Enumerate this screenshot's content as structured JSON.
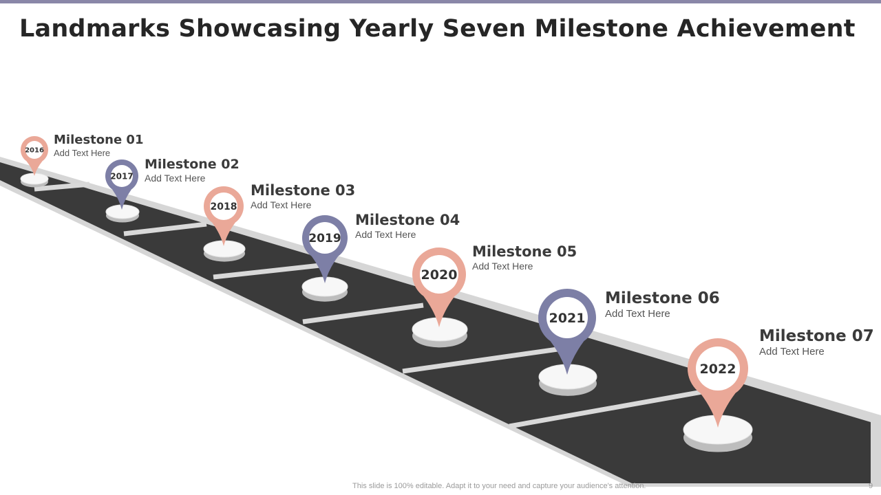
{
  "title": "Landmarks Showcasing Yearly Seven Milestone Achievement",
  "colors": {
    "pin_salmon": "#eaa898",
    "pin_purple": "#7d7fa6",
    "road": "#3a3a3a",
    "road_border": "#d6d6d6",
    "accent_bar": "#8a87a8"
  },
  "milestones": [
    {
      "year": "2016",
      "title": "Milestone 01",
      "text": "Add Text Here",
      "color": "#eaa898"
    },
    {
      "year": "2017",
      "title": "Milestone  02",
      "text": "Add Text Here",
      "color": "#7d7fa6"
    },
    {
      "year": "2018",
      "title": "Milestone 03",
      "text": "Add Text Here",
      "color": "#eaa898"
    },
    {
      "year": "2019",
      "title": "Milestone 04",
      "text": "Add Text Here",
      "color": "#7d7fa6"
    },
    {
      "year": "2020",
      "title": "Milestone 05",
      "text": "Add Text Here",
      "color": "#eaa898"
    },
    {
      "year": "2021",
      "title": "Milestone 06",
      "text": "Add Text Here",
      "color": "#7d7fa6"
    },
    {
      "year": "2022",
      "title": "Milestone 07",
      "text": "Add Text Here",
      "color": "#eaa898"
    }
  ],
  "footer": "This slide is 100% editable. Adapt it to your need and capture your audience's attention.",
  "page_number": "9"
}
